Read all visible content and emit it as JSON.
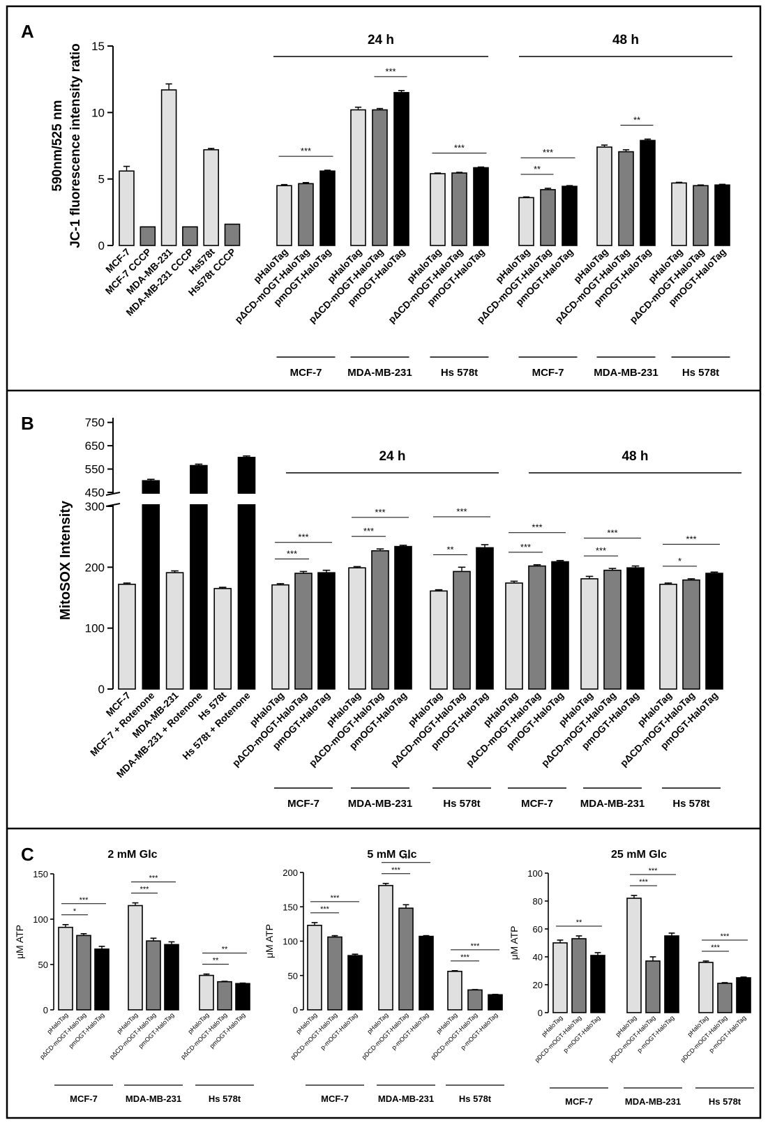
{
  "colors": {
    "light": "#e0e0e0",
    "mid": "#7f7f7f",
    "dark": "#000000"
  },
  "chart_data": [
    {
      "panel": "A",
      "type": "bar",
      "ylabel": [
        "590nm/525 nm",
        "JC-1 fluorescence intensity ratio"
      ],
      "ylim": [
        0,
        15
      ],
      "yticks": [
        "0",
        "5",
        "10",
        "15"
      ],
      "time_labels": [
        "24 h",
        "48 h"
      ],
      "controls": [
        {
          "label": "MCF-7",
          "value": 5.6,
          "err": 0.35,
          "color": "light"
        },
        {
          "label": "MCF-7 CCCP",
          "value": 1.4,
          "err": 0.0,
          "color": "mid"
        },
        {
          "label": "MDA-MB-231",
          "value": 11.7,
          "err": 0.45,
          "color": "light"
        },
        {
          "label": "MDA-MB-231 CCCP",
          "value": 1.4,
          "err": 0.0,
          "color": "mid"
        },
        {
          "label": "Hs578t",
          "value": 7.2,
          "err": 0.1,
          "color": "light"
        },
        {
          "label": "Hs578t CCCP",
          "value": 1.6,
          "err": 0.0,
          "color": "mid"
        }
      ],
      "bar_labels": [
        "pHaloTag",
        "pΔCD-mOGT-HaloTag",
        "pmOGT-HaloTag"
      ],
      "group_labels": [
        "MCF-7",
        "MDA-MB-231",
        "Hs 578t",
        "MCF-7",
        "MDA-MB-231",
        "Hs 578t"
      ],
      "group_values": [
        [
          4.5,
          4.65,
          5.6
        ],
        [
          10.2,
          10.2,
          11.5
        ],
        [
          5.4,
          5.45,
          5.85
        ],
        [
          3.6,
          4.2,
          4.45
        ],
        [
          7.4,
          7.05,
          7.9
        ],
        [
          4.7,
          4.5,
          4.55
        ]
      ],
      "group_errors": [
        [
          0.08,
          0.08,
          0.06
        ],
        [
          0.2,
          0.1,
          0.15
        ],
        [
          0.05,
          0.05,
          0.05
        ],
        [
          0.05,
          0.1,
          0.05
        ],
        [
          0.15,
          0.15,
          0.1
        ],
        [
          0.05,
          0.05,
          0.05
        ]
      ],
      "sig": [
        {
          "group": 0,
          "from": 0,
          "to": 2,
          "text": "***"
        },
        {
          "group": 1,
          "from": 1,
          "to": 2,
          "text": "***"
        },
        {
          "group": 2,
          "from": 0,
          "to": 2,
          "text": "***"
        },
        {
          "group": 3,
          "from": 0,
          "to": 1,
          "text": "**"
        },
        {
          "group": 3,
          "from": 0,
          "to": 2,
          "text": "***"
        },
        {
          "group": 4,
          "from": 1,
          "to": 2,
          "text": "**"
        }
      ]
    },
    {
      "panel": "B",
      "type": "bar",
      "ylabel": "MitoSOX Intensity",
      "yticks_lower": [
        "0",
        "100",
        "200",
        "300"
      ],
      "yticks_upper": [
        "450",
        "550",
        "650",
        "750"
      ],
      "y_break": [
        300,
        450
      ],
      "time_labels": [
        "24 h",
        "48 h"
      ],
      "controls": [
        {
          "label": "MCF-7",
          "value": 172,
          "err": 2,
          "color": "light"
        },
        {
          "label": "MCF-7 + Rotenone",
          "value": 500,
          "err": 6,
          "color": "dark"
        },
        {
          "label": "MDA-MB-231",
          "value": 191,
          "err": 3,
          "color": "light"
        },
        {
          "label": "MDA-MB-231 + Rotenone",
          "value": 565,
          "err": 6,
          "color": "dark"
        },
        {
          "label": "Hs 578t",
          "value": 165,
          "err": 2,
          "color": "light"
        },
        {
          "label": "Hs 578t + Rotenone",
          "value": 600,
          "err": 6,
          "color": "dark"
        }
      ],
      "bar_labels": [
        "pHaloTag",
        "pΔCD-mOGT-HaloTag",
        "pmOGT-HaloTag"
      ],
      "group_labels": [
        "MCF-7",
        "MDA-MB-231",
        "Hs 578t",
        "MCF-7",
        "MDA-MB-231",
        "Hs 578t"
      ],
      "group_values": [
        [
          171,
          190,
          191
        ],
        [
          199,
          227,
          234
        ],
        [
          161,
          193,
          232
        ],
        [
          174,
          202,
          209
        ],
        [
          181,
          195,
          199
        ],
        [
          172,
          179,
          190
        ]
      ],
      "group_errors": [
        [
          2,
          3,
          4
        ],
        [
          2,
          3,
          2
        ],
        [
          2,
          7,
          5
        ],
        [
          3,
          2,
          2
        ],
        [
          4,
          3,
          3
        ],
        [
          2,
          2,
          2
        ]
      ],
      "sig": [
        {
          "group": 0,
          "from": 0,
          "to": 1,
          "text": "***"
        },
        {
          "group": 0,
          "from": 0,
          "to": 2,
          "text": "***"
        },
        {
          "group": 1,
          "from": 0,
          "to": 1,
          "text": "***"
        },
        {
          "group": 1,
          "from": 0,
          "to": 2,
          "text": "***"
        },
        {
          "group": 2,
          "from": 0,
          "to": 1,
          "text": "**"
        },
        {
          "group": 2,
          "from": 0,
          "to": 2,
          "text": "***"
        },
        {
          "group": 3,
          "from": 0,
          "to": 1,
          "text": "***"
        },
        {
          "group": 3,
          "from": 0,
          "to": 2,
          "text": "***"
        },
        {
          "group": 4,
          "from": 0,
          "to": 1,
          "text": "***"
        },
        {
          "group": 4,
          "from": 0,
          "to": 2,
          "text": "***"
        },
        {
          "group": 5,
          "from": 0,
          "to": 1,
          "text": "*"
        },
        {
          "group": 5,
          "from": 0,
          "to": 2,
          "text": "***"
        }
      ]
    },
    {
      "panel": "C",
      "type": "bar",
      "title": "2 mM Glc",
      "ylabel": "μM ATP",
      "ylim": [
        0,
        150
      ],
      "yticks": [
        "0",
        "50",
        "100",
        "150"
      ],
      "bar_labels": [
        "pHaloTag",
        "pΔCD-mOGT-HaloTag",
        "pmOGT-HaloTag"
      ],
      "group_labels": [
        "MCF-7",
        "MDA-MB-231",
        "Hs 578t"
      ],
      "group_values": [
        [
          91,
          82,
          67
        ],
        [
          115,
          76,
          72
        ],
        [
          38,
          31,
          29
        ]
      ],
      "group_errors": [
        [
          3,
          2,
          3
        ],
        [
          3,
          3,
          3
        ],
        [
          1.5,
          0.5,
          0.5
        ]
      ],
      "sig": [
        {
          "group": 0,
          "from": 0,
          "to": 1,
          "text": "*"
        },
        {
          "group": 0,
          "from": 0,
          "to": 2,
          "text": "***"
        },
        {
          "group": 1,
          "from": 0,
          "to": 1,
          "text": "***"
        },
        {
          "group": 1,
          "from": 0,
          "to": 2,
          "text": "***"
        },
        {
          "group": 2,
          "from": 0,
          "to": 1,
          "text": "**"
        },
        {
          "group": 2,
          "from": 0,
          "to": 2,
          "text": "**"
        }
      ]
    },
    {
      "panel": "C",
      "type": "bar",
      "title": "5 mM Glc",
      "ylabel": "μM ATP",
      "ylim": [
        0,
        200
      ],
      "yticks": [
        "0",
        "50",
        "100",
        "150",
        "200"
      ],
      "bar_labels": [
        "pHaloTag",
        "pDCD-mOGT-HaloTag",
        "p-mOGT-HaloTag"
      ],
      "group_labels": [
        "MCF-7",
        "MDA-MB-231",
        "Hs 578t"
      ],
      "group_values": [
        [
          123,
          106,
          79
        ],
        [
          181,
          148,
          107
        ],
        [
          56,
          29,
          22
        ]
      ],
      "group_errors": [
        [
          4,
          2,
          2
        ],
        [
          3,
          5,
          1
        ],
        [
          1,
          0.5,
          0.5
        ]
      ],
      "sig": [
        {
          "group": 0,
          "from": 0,
          "to": 1,
          "text": "***"
        },
        {
          "group": 0,
          "from": 0,
          "to": 2,
          "text": "***"
        },
        {
          "group": 1,
          "from": 0,
          "to": 1,
          "text": "***"
        },
        {
          "group": 1,
          "from": 0,
          "to": 2,
          "text": "***"
        },
        {
          "group": 2,
          "from": 0,
          "to": 1,
          "text": "***"
        },
        {
          "group": 2,
          "from": 0,
          "to": 2,
          "text": "***"
        }
      ]
    },
    {
      "panel": "C",
      "type": "bar",
      "title": "25 mM Glc",
      "ylabel": "μM ATP",
      "ylim": [
        0,
        100
      ],
      "yticks": [
        "0",
        "20",
        "40",
        "60",
        "80",
        "100"
      ],
      "bar_labels": [
        "pHaloTag",
        "pDCD-mOGT-HaloTag",
        "p-mOGT-HaloTag"
      ],
      "group_labels": [
        "MCF-7",
        "MDA-MB-231",
        "Hs 578t"
      ],
      "group_values": [
        [
          50,
          53,
          41
        ],
        [
          82,
          37,
          55
        ],
        [
          36,
          21,
          25
        ]
      ],
      "group_errors": [
        [
          2,
          2,
          2
        ],
        [
          2,
          3,
          2
        ],
        [
          1,
          0.5,
          0.5
        ]
      ],
      "sig": [
        {
          "group": 0,
          "from": 0,
          "to": 2,
          "text": "**"
        },
        {
          "group": 1,
          "from": 0,
          "to": 1,
          "text": "***"
        },
        {
          "group": 1,
          "from": 0,
          "to": 2,
          "text": "***"
        },
        {
          "group": 2,
          "from": 0,
          "to": 1,
          "text": "***"
        },
        {
          "group": 2,
          "from": 0,
          "to": 2,
          "text": "***"
        }
      ]
    }
  ],
  "panel_letters": [
    "A",
    "B",
    "C"
  ]
}
